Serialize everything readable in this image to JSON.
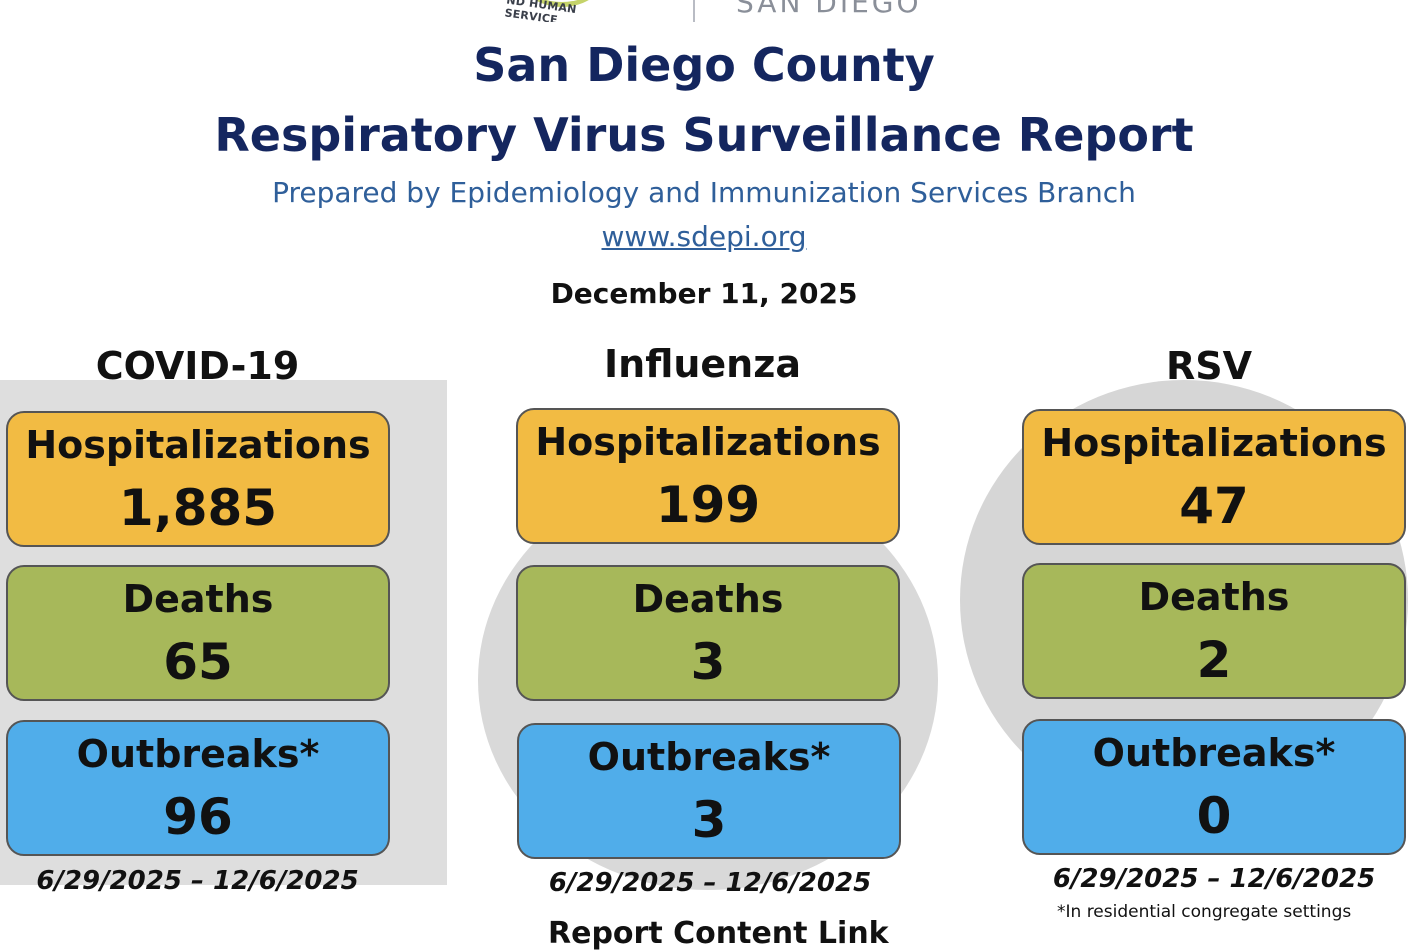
{
  "header": {
    "logo_left_text": "ND HUMAN SERVICE",
    "logo_right_text": "SAN DIEGO",
    "title_line1": "San Diego County",
    "title_line2": "Respiratory Virus Surveillance Report",
    "prepared_by": "Prepared by Epidemiology and Immunization Services Branch",
    "website": "www.sdepi.org",
    "report_date": "December 11, 2025"
  },
  "columns": [
    {
      "heading": "COVID-19",
      "hospitalizations_label": "Hospitalizations",
      "hospitalizations_value": "1,885",
      "deaths_label": "Deaths",
      "deaths_value": "65",
      "outbreaks_label": "Outbreaks*",
      "outbreaks_value": "96",
      "date_range": "6/29/2025 – 12/6/2025"
    },
    {
      "heading": "Influenza",
      "hospitalizations_label": "Hospitalizations",
      "hospitalizations_value": "199",
      "deaths_label": "Deaths",
      "deaths_value": "3",
      "outbreaks_label": "Outbreaks*",
      "outbreaks_value": "3",
      "date_range": "6/29/2025 – 12/6/2025"
    },
    {
      "heading": "RSV",
      "hospitalizations_label": "Hospitalizations",
      "hospitalizations_value": "47",
      "deaths_label": "Deaths",
      "deaths_value": "2",
      "outbreaks_label": "Outbreaks*",
      "outbreaks_value": "0",
      "date_range": "6/29/2025 – 12/6/2025"
    }
  ],
  "footnote": "*In residential congregate settings",
  "cut_off_text": "Report Content Link",
  "colors": {
    "title": "#14265f",
    "subtitle": "#2f5f9a",
    "hospitalizations": "#f2bb43",
    "deaths": "#a7b85a",
    "outbreaks": "#50adea"
  }
}
